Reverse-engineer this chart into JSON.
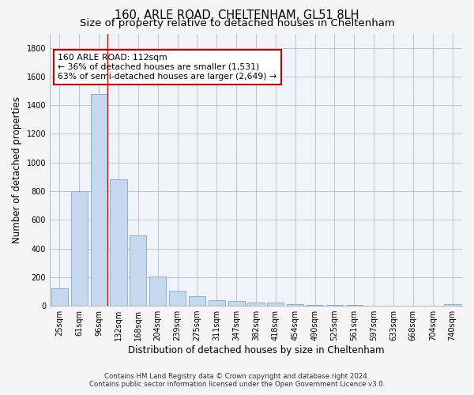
{
  "title": "160, ARLE ROAD, CHELTENHAM, GL51 8LH",
  "subtitle": "Size of property relative to detached houses in Cheltenham",
  "xlabel": "Distribution of detached houses by size in Cheltenham",
  "ylabel": "Number of detached properties",
  "footnote1": "Contains HM Land Registry data © Crown copyright and database right 2024.",
  "footnote2": "Contains public sector information licensed under the Open Government Licence v3.0.",
  "bar_labels": [
    "25sqm",
    "61sqm",
    "96sqm",
    "132sqm",
    "168sqm",
    "204sqm",
    "239sqm",
    "275sqm",
    "311sqm",
    "347sqm",
    "382sqm",
    "418sqm",
    "454sqm",
    "490sqm",
    "525sqm",
    "561sqm",
    "597sqm",
    "633sqm",
    "668sqm",
    "704sqm",
    "740sqm"
  ],
  "bar_values": [
    120,
    800,
    1480,
    880,
    490,
    205,
    105,
    65,
    40,
    35,
    25,
    20,
    10,
    5,
    5,
    4,
    3,
    2,
    2,
    2,
    10
  ],
  "bar_color": "#c5d8ee",
  "bar_edgecolor": "#7aaad0",
  "grid_color": "#bbbbbb",
  "annotation_line1": "160 ARLE ROAD: 112sqm",
  "annotation_line2": "← 36% of detached houses are smaller (1,531)",
  "annotation_line3": "63% of semi-detached houses are larger (2,649) →",
  "annotation_box_color": "#ffffff",
  "annotation_box_edgecolor": "#cc0000",
  "red_line_x": 2.43,
  "ylim": [
    0,
    1900
  ],
  "yticks": [
    0,
    200,
    400,
    600,
    800,
    1000,
    1200,
    1400,
    1600,
    1800
  ],
  "bg_color": "#f5f5f5",
  "plot_bg_color": "#f0f4fa",
  "title_fontsize": 10.5,
  "subtitle_fontsize": 9.5,
  "axis_label_fontsize": 8.5,
  "tick_fontsize": 7,
  "annotation_fontsize": 7.8,
  "footnote_fontsize": 6.2
}
